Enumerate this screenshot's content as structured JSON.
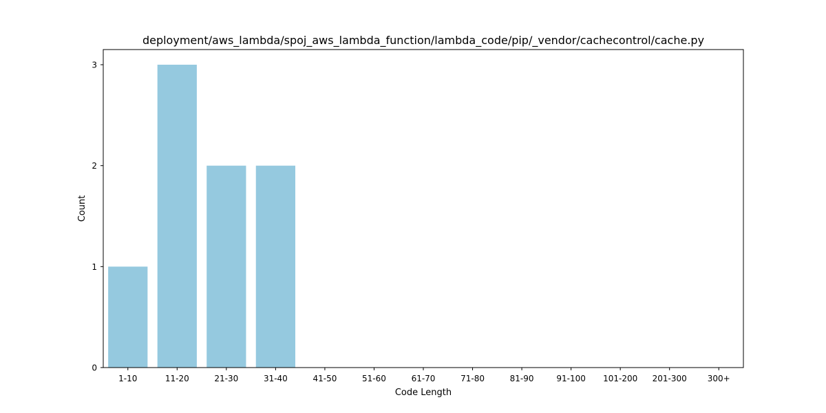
{
  "chart_data": {
    "type": "bar",
    "title": "deployment/aws_lambda/spoj_aws_lambda_function/lambda_code/pip/_vendor/cachecontrol/cache.py",
    "xlabel": "Code Length",
    "ylabel": "Count",
    "categories": [
      "1-10",
      "11-20",
      "21-30",
      "31-40",
      "41-50",
      "51-60",
      "61-70",
      "71-80",
      "81-90",
      "91-100",
      "101-200",
      "201-300",
      "300+"
    ],
    "values": [
      1,
      3,
      2,
      2,
      0,
      0,
      0,
      0,
      0,
      0,
      0,
      0,
      0
    ],
    "yticks": [
      0,
      1,
      2,
      3
    ],
    "ylim": [
      0,
      3.15
    ],
    "grid": false,
    "legend": "none",
    "bar_color": "#95c9df"
  }
}
